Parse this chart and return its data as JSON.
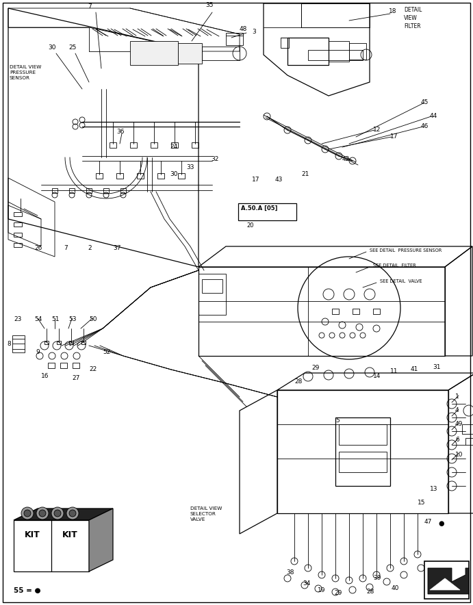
{
  "background_color": "#ffffff",
  "line_color": "#000000",
  "figsize": [
    6.91,
    8.84
  ],
  "dpi": 100,
  "labels": {
    "detail_view_pressure_sensor": "DETAIL VIEW\nPRESSURE\nSENSOR",
    "detail_view_filter": "DETAIL\nVIEW\nFILTER",
    "detail_view_selector_valve": "DETAIL VIEW\nSELECTOR\nVALVE",
    "see_detail_pressure": "SEE DETAIL  PRESSURE SENSOR",
    "see_detail_filter": "SEE DETAIL  FILTER",
    "see_detail_valve": "SEE DETAIL  VALVE",
    "kit_label": "55 = ●",
    "part47": "47 ●",
    "ref_box_line1": "A.50.A [05]",
    "ref_box_line2": "20"
  }
}
